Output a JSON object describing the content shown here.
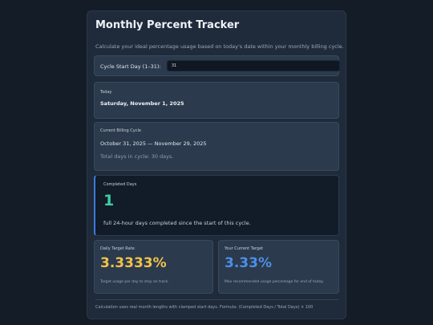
{
  "app": {
    "title": "Monthly Percent Tracker",
    "subtitle": "Calculate your ideal percentage usage based on today's date within your monthly billing cycle."
  },
  "cycle_start": {
    "label": "Cycle Start Day (1–31):",
    "value": "31"
  },
  "today": {
    "label": "Today",
    "value": "Saturday, November 1, 2025"
  },
  "billing_cycle": {
    "label": "Current Billing Cycle",
    "range": "October 31, 2025 — November 29, 2025",
    "total": "Total days in cycle: 30 days."
  },
  "completed": {
    "label": "Completed Days",
    "value": "1",
    "description": "full 24-hour days completed since the start of this cycle."
  },
  "daily_rate": {
    "label": "Daily Target Rate",
    "value": "3.3333%",
    "description": "Target usage per day to stay on track."
  },
  "current_target": {
    "label": "Your Current Target",
    "value": "3.33%",
    "description": "Max recommended usage percentage for end of today."
  },
  "footer": "Calculation uses real month lengths with clamped start days. Formula: (Completed Days / Total Days) × 100",
  "colors": {
    "completed_accent": "#3fcfa0",
    "rate_accent": "#f2c34a",
    "target_accent": "#4d8fe8"
  }
}
